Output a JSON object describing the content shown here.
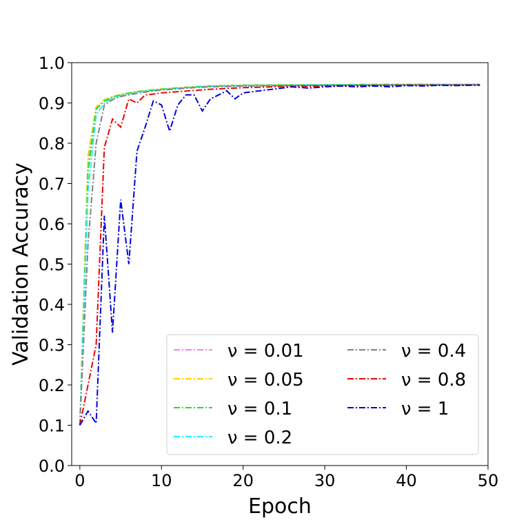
{
  "chart_data": {
    "type": "line",
    "xlabel": "Epoch",
    "ylabel": "Validation Accuracy",
    "xlim": [
      -1,
      50
    ],
    "ylim": [
      0.0,
      1.0
    ],
    "xticks": [
      "0",
      "10",
      "20",
      "30",
      "40",
      "50"
    ],
    "yticks": [
      "0.0",
      "0.1",
      "0.2",
      "0.3",
      "0.4",
      "0.5",
      "0.6",
      "0.7",
      "0.8",
      "0.9",
      "1.0"
    ],
    "legend_position": "bottom-right",
    "line_style": "dash-dot",
    "series": [
      {
        "name": "ν = 0.01",
        "color": "#ee82ee",
        "x": [
          0,
          1,
          2,
          3,
          4,
          5,
          6,
          7,
          8,
          9,
          10,
          12,
          14,
          16,
          18,
          20,
          25,
          30,
          35,
          40,
          45,
          49
        ],
        "values": [
          0.1,
          0.75,
          0.885,
          0.905,
          0.915,
          0.92,
          0.925,
          0.928,
          0.93,
          0.932,
          0.934,
          0.937,
          0.94,
          0.941,
          0.942,
          0.943,
          0.944,
          0.945,
          0.945,
          0.945,
          0.946,
          0.946
        ]
      },
      {
        "name": "ν = 0.05",
        "color": "#ffcc00",
        "x": [
          0,
          1,
          2,
          3,
          4,
          5,
          6,
          7,
          8,
          9,
          10,
          12,
          14,
          16,
          18,
          20,
          25,
          30,
          35,
          40,
          45,
          49
        ],
        "values": [
          0.1,
          0.77,
          0.89,
          0.908,
          0.916,
          0.921,
          0.925,
          0.928,
          0.931,
          0.933,
          0.935,
          0.938,
          0.94,
          0.942,
          0.943,
          0.944,
          0.945,
          0.945,
          0.946,
          0.946,
          0.946,
          0.946
        ]
      },
      {
        "name": "ν = 0.1",
        "color": "#22dd22",
        "x": [
          0,
          1,
          2,
          3,
          4,
          5,
          6,
          7,
          8,
          9,
          10,
          12,
          14,
          16,
          18,
          20,
          25,
          30,
          35,
          40,
          45,
          49
        ],
        "values": [
          0.1,
          0.73,
          0.885,
          0.905,
          0.914,
          0.92,
          0.924,
          0.928,
          0.93,
          0.932,
          0.934,
          0.937,
          0.94,
          0.942,
          0.943,
          0.944,
          0.945,
          0.945,
          0.946,
          0.946,
          0.946,
          0.946
        ]
      },
      {
        "name": "ν = 0.2",
        "color": "#22eeff",
        "x": [
          0,
          1,
          2,
          3,
          4,
          5,
          6,
          7,
          8,
          9,
          10,
          12,
          14,
          16,
          18,
          20,
          25,
          30,
          35,
          40,
          45,
          49
        ],
        "values": [
          0.1,
          0.68,
          0.87,
          0.9,
          0.912,
          0.918,
          0.922,
          0.926,
          0.929,
          0.931,
          0.933,
          0.936,
          0.939,
          0.941,
          0.942,
          0.943,
          0.944,
          0.945,
          0.945,
          0.945,
          0.946,
          0.946
        ]
      },
      {
        "name": "ν = 0.4",
        "color": "#808080",
        "x": [
          0,
          1,
          2,
          3,
          4,
          5,
          6,
          7,
          8,
          9,
          10,
          12,
          14,
          16,
          18,
          20,
          25,
          30,
          35,
          40,
          45,
          49
        ],
        "values": [
          0.1,
          0.55,
          0.8,
          0.895,
          0.908,
          0.916,
          0.92,
          0.924,
          0.927,
          0.93,
          0.932,
          0.935,
          0.938,
          0.94,
          0.941,
          0.942,
          0.943,
          0.944,
          0.944,
          0.945,
          0.945,
          0.945
        ]
      },
      {
        "name": "ν = 0.8",
        "color": "#ee0000",
        "x": [
          0,
          1,
          2,
          3,
          4,
          5,
          6,
          7,
          8,
          9,
          10,
          12,
          14,
          16,
          18,
          20,
          22,
          25,
          30,
          35,
          40,
          45,
          49
        ],
        "values": [
          0.1,
          0.2,
          0.3,
          0.79,
          0.86,
          0.84,
          0.91,
          0.9,
          0.92,
          0.922,
          0.925,
          0.928,
          0.931,
          0.934,
          0.936,
          0.938,
          0.939,
          0.941,
          0.942,
          0.943,
          0.944,
          0.944,
          0.945
        ]
      },
      {
        "name": "ν = 1",
        "color": "#0000dd",
        "x": [
          0,
          1,
          2,
          3,
          4,
          5,
          6,
          7,
          8,
          9,
          10,
          11,
          12,
          13,
          14,
          15,
          16,
          17,
          18,
          19,
          20,
          22,
          24,
          26,
          28,
          30,
          32,
          34,
          36,
          38,
          40,
          42,
          44,
          46,
          48,
          49
        ],
        "values": [
          0.1,
          0.135,
          0.105,
          0.62,
          0.33,
          0.66,
          0.5,
          0.78,
          0.84,
          0.905,
          0.895,
          0.83,
          0.895,
          0.92,
          0.92,
          0.88,
          0.91,
          0.92,
          0.93,
          0.91,
          0.925,
          0.93,
          0.935,
          0.94,
          0.937,
          0.94,
          0.942,
          0.94,
          0.942,
          0.94,
          0.943,
          0.942,
          0.944,
          0.943,
          0.944,
          0.944
        ]
      }
    ]
  }
}
